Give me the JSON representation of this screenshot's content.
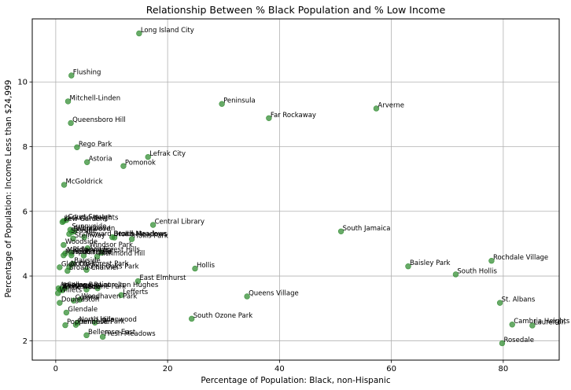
{
  "chart_data": {
    "type": "scatter",
    "title": "Relationship Between % Black Population and % Low Income",
    "xlabel": "Percentage of Population: Black, non-Hispanic",
    "ylabel": "Percentage of Population: Income Less than $24,999",
    "xlim": [
      -4.2,
      90
    ],
    "ylim": [
      1.4,
      11.95
    ],
    "xticks": [
      0,
      20,
      40,
      60,
      80
    ],
    "yticks": [
      2,
      4,
      6,
      8,
      10
    ],
    "grid": true,
    "point_color": "#2e8b2e",
    "points": [
      {
        "name": "Long Island City",
        "x": 14.9,
        "y": 11.5
      },
      {
        "name": "Flushing",
        "x": 2.8,
        "y": 10.2
      },
      {
        "name": "Mitchell-Linden",
        "x": 2.2,
        "y": 9.4
      },
      {
        "name": "Queensboro Hill",
        "x": 2.7,
        "y": 8.73
      },
      {
        "name": "Peninsula",
        "x": 29.7,
        "y": 9.32
      },
      {
        "name": "Arverne",
        "x": 57.3,
        "y": 9.18
      },
      {
        "name": "Far Rockaway",
        "x": 38.1,
        "y": 8.88
      },
      {
        "name": "Rego Park",
        "x": 3.8,
        "y": 7.98
      },
      {
        "name": "Lefrak City",
        "x": 16.5,
        "y": 7.68
      },
      {
        "name": "Astoria",
        "x": 5.6,
        "y": 7.52
      },
      {
        "name": "Pomonok",
        "x": 12.1,
        "y": 7.4
      },
      {
        "name": "McGoldrick",
        "x": 1.5,
        "y": 6.82
      },
      {
        "name": "Court Square",
        "x": 1.9,
        "y": 5.73
      },
      {
        "name": "Jackson Heights",
        "x": 1.4,
        "y": 5.7
      },
      {
        "name": "Kew Gardens",
        "x": 1.2,
        "y": 5.67
      },
      {
        "name": "Central Library",
        "x": 17.4,
        "y": 5.58
      },
      {
        "name": "South Jamaica",
        "x": 51.0,
        "y": 5.38
      },
      {
        "name": "Sunnyside",
        "x": 2.6,
        "y": 5.43
      },
      {
        "name": "Ridgewood",
        "x": 2.9,
        "y": 5.36
      },
      {
        "name": "Woodhaven",
        "x": 3.3,
        "y": 5.38
      },
      {
        "name": "Seaside",
        "x": 2.4,
        "y": 5.3
      },
      {
        "name": "Howard Beach",
        "x": 5.1,
        "y": 5.2
      },
      {
        "name": "Broad Meadows",
        "x": 10.1,
        "y": 5.2
      },
      {
        "name": "Hollis Meadows",
        "x": 10.5,
        "y": 5.19
      },
      {
        "name": "Hollis Park",
        "x": 13.6,
        "y": 5.14
      },
      {
        "name": "Steinway",
        "x": 3.1,
        "y": 5.16
      },
      {
        "name": "Woodside",
        "x": 1.4,
        "y": 4.96
      },
      {
        "name": "Windsor Park",
        "x": 5.7,
        "y": 4.86
      },
      {
        "name": "Middle Village",
        "x": 1.7,
        "y": 4.7
      },
      {
        "name": "Ridgeview",
        "x": 2.8,
        "y": 4.72
      },
      {
        "name": "Forest Hills",
        "x": 8.2,
        "y": 4.72
      },
      {
        "name": "Maspeth",
        "x": 1.4,
        "y": 4.64
      },
      {
        "name": "Auburndale",
        "x": 2.8,
        "y": 4.64
      },
      {
        "name": "Hillcrest",
        "x": 5.0,
        "y": 4.63
      },
      {
        "name": "Richmond Hill",
        "x": 7.4,
        "y": 4.6
      },
      {
        "name": "Rochdale Village",
        "x": 77.9,
        "y": 4.47
      },
      {
        "name": "Baisley Park",
        "x": 63.0,
        "y": 4.3
      },
      {
        "name": "Hollis",
        "x": 24.9,
        "y": 4.23
      },
      {
        "name": "Bayside",
        "x": 3.0,
        "y": 4.38
      },
      {
        "name": "Glen Oaks",
        "x": 0.7,
        "y": 4.27
      },
      {
        "name": "North Forest Park",
        "x": 2.4,
        "y": 4.28
      },
      {
        "name": "Broad Channel",
        "x": 2.1,
        "y": 4.16
      },
      {
        "name": "Glen Oaks Park",
        "x": 5.5,
        "y": 4.19
      },
      {
        "name": "South Hollis",
        "x": 71.5,
        "y": 4.05
      },
      {
        "name": "East Elmhurst",
        "x": 14.7,
        "y": 3.84
      },
      {
        "name": "Arverne Bay",
        "x": 0.5,
        "y": 3.62
      },
      {
        "name": "Whitestone",
        "x": 0.8,
        "y": 3.57
      },
      {
        "name": "Bellerose",
        "x": 1.0,
        "y": 3.6
      },
      {
        "name": "Little Neck",
        "x": 1.2,
        "y": 3.56
      },
      {
        "name": "Laurelton Hughes",
        "x": 7.5,
        "y": 3.62
      },
      {
        "name": "Ozone Park",
        "x": 5.5,
        "y": 3.58
      },
      {
        "name": "College Point",
        "x": 1.7,
        "y": 3.63
      },
      {
        "name": "Willets",
        "x": 0.4,
        "y": 3.47
      },
      {
        "name": "Lefferts",
        "x": 11.7,
        "y": 3.41
      },
      {
        "name": "Queens Village",
        "x": 34.2,
        "y": 3.37
      },
      {
        "name": "Corona",
        "x": 3.2,
        "y": 3.24
      },
      {
        "name": "Woodhaven Park",
        "x": 4.3,
        "y": 3.27
      },
      {
        "name": "Douglaston",
        "x": 0.7,
        "y": 3.17
      },
      {
        "name": "St. Albans",
        "x": 79.4,
        "y": 3.17
      },
      {
        "name": "Glendale",
        "x": 1.9,
        "y": 2.87
      },
      {
        "name": "South Ozone Park",
        "x": 24.3,
        "y": 2.68
      },
      {
        "name": "North Hills",
        "x": 3.9,
        "y": 2.56
      },
      {
        "name": "Lindenwood",
        "x": 7.0,
        "y": 2.56
      },
      {
        "name": "Pomonok Park",
        "x": 3.6,
        "y": 2.49
      },
      {
        "name": "Poppenhusen",
        "x": 1.7,
        "y": 2.48
      },
      {
        "name": "Cambria Heights",
        "x": 81.6,
        "y": 2.5
      },
      {
        "name": "Laurelton",
        "x": 85.2,
        "y": 2.47
      },
      {
        "name": "Bellerose East",
        "x": 5.5,
        "y": 2.17
      },
      {
        "name": "Fresh Meadows",
        "x": 8.4,
        "y": 2.12
      },
      {
        "name": "Rosedale",
        "x": 79.8,
        "y": 1.92
      }
    ],
    "printed_labels": [
      {
        "text": "Long Island City",
        "ref": 0
      },
      {
        "text": "Flushing",
        "ref": 1
      },
      {
        "text": "Mitchell-Linden",
        "ref": 2
      },
      {
        "text": "Queensboro Hill",
        "ref": 3
      },
      {
        "text": "Peninsula",
        "ref": 4
      },
      {
        "text": "Arverne",
        "ref": 5
      },
      {
        "text": "Far Rockaway",
        "ref": 6
      },
      {
        "text": "Rego Park",
        "ref": 7
      },
      {
        "text": "Lefrak City",
        "ref": 8
      },
      {
        "text": "Astoria",
        "ref": 9
      },
      {
        "text": "Pomonok",
        "ref": 10
      },
      {
        "text": "McGoldrick",
        "ref": 11
      },
      {
        "text": "Court Square",
        "ref": 12
      },
      {
        "text": "Jackson Heights",
        "ref": 13
      },
      {
        "text": "Kew Gardens",
        "ref": 14
      },
      {
        "text": "Central Library",
        "ref": 15
      },
      {
        "text": "South Jamaica",
        "ref": 16
      },
      {
        "text": "Sunnyside",
        "ref": 17
      },
      {
        "text": "Ridgewood",
        "ref": 18
      },
      {
        "text": "Woodhaven",
        "ref": 19
      },
      {
        "text": "Seaside",
        "ref": 20
      },
      {
        "text": "Howard Beach",
        "ref": 21
      },
      {
        "text": "Broad Meadows",
        "ref": 22
      },
      {
        "text": "Hollis Meadows",
        "ref": 23
      },
      {
        "text": "Hollis Park",
        "ref": 24
      },
      {
        "text": "Steinway",
        "ref": 25
      },
      {
        "text": "Woodside",
        "ref": 26
      },
      {
        "text": "Windsor Park",
        "ref": 27
      },
      {
        "text": "Middle Village",
        "ref": 28
      },
      {
        "text": "Ridgeview",
        "ref": 29
      },
      {
        "text": "Forest Hills",
        "ref": 30
      },
      {
        "text": "Maspeth",
        "ref": 31
      },
      {
        "text": "Auburndale",
        "ref": 32
      },
      {
        "text": "Hillcrest",
        "ref": 33
      },
      {
        "text": "Richmond Hill",
        "ref": 34
      },
      {
        "text": "Rochdale Village",
        "ref": 35
      },
      {
        "text": "Baisley Park",
        "ref": 36
      },
      {
        "text": "Hollis",
        "ref": 37
      },
      {
        "text": "Bayside",
        "ref": 38
      },
      {
        "text": "Glen Oaks",
        "ref": 39
      },
      {
        "text": "North Forest Park",
        "ref": 40
      },
      {
        "text": "Broad Channel",
        "ref": 41
      },
      {
        "text": "Glen Oaks Park",
        "ref": 42
      },
      {
        "text": "South Hollis",
        "ref": 43
      },
      {
        "text": "East Elmhurst",
        "ref": 44
      },
      {
        "text": "Arverne Bay",
        "ref": 45
      },
      {
        "text": "Whitestone",
        "ref": 46
      },
      {
        "text": "Bellerose",
        "ref": 47
      },
      {
        "text": "Little Neck",
        "ref": 48
      },
      {
        "text": "Laurelton Hughes",
        "ref": 49
      },
      {
        "text": "Ozone Park",
        "ref": 50
      },
      {
        "text": "College Point",
        "ref": 51
      },
      {
        "text": "Willets",
        "ref": 52
      },
      {
        "text": "Lefferts",
        "ref": 53
      },
      {
        "text": "Queens Village",
        "ref": 54
      },
      {
        "text": "Corona",
        "ref": 55
      },
      {
        "text": "Woodhaven Park",
        "ref": 56
      },
      {
        "text": "Douglaston",
        "ref": 57
      },
      {
        "text": "St. Albans",
        "ref": 58
      },
      {
        "text": "Glendale",
        "ref": 59
      },
      {
        "text": "South Ozone Park",
        "ref": 60
      },
      {
        "text": "North Hills",
        "ref": 61
      },
      {
        "text": "Lindenwood",
        "ref": 62
      },
      {
        "text": "Pomonok Park",
        "ref": 63
      },
      {
        "text": "Poppenhusen",
        "ref": 64
      },
      {
        "text": "Cambria Heights",
        "ref": 65
      },
      {
        "text": "Laurelton",
        "ref": 66
      },
      {
        "text": "Bellerose East",
        "ref": 67
      },
      {
        "text": "Fresh Meadows",
        "ref": 68
      },
      {
        "text": "Rosedale",
        "ref": 69
      }
    ]
  }
}
